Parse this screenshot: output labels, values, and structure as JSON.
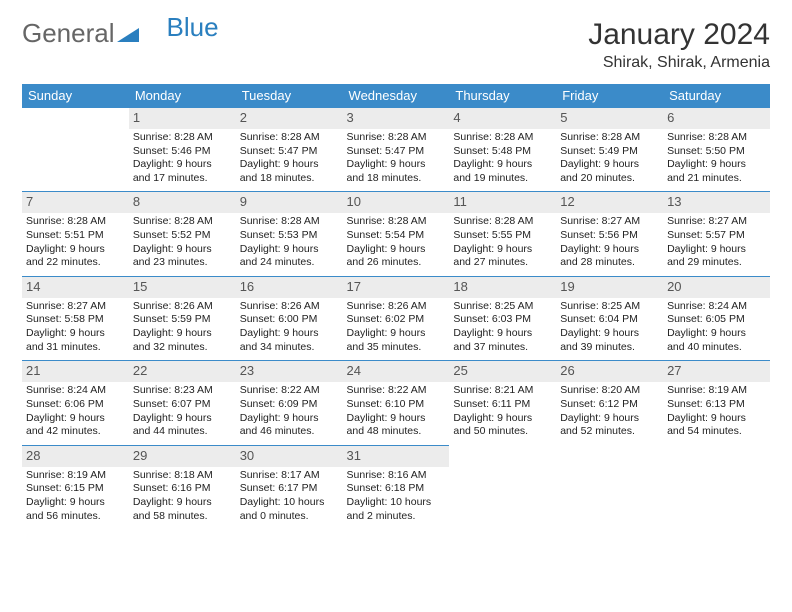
{
  "brand": {
    "part1": "General",
    "part2": "Blue"
  },
  "title": "January 2024",
  "location": "Shirak, Shirak, Armenia",
  "colors": {
    "header_bg": "#3b8bc9",
    "daynum_bg": "#ececec",
    "border": "#3b8bc9"
  },
  "weekdays": [
    "Sunday",
    "Monday",
    "Tuesday",
    "Wednesday",
    "Thursday",
    "Friday",
    "Saturday"
  ],
  "weeks": [
    [
      {
        "n": "",
        "sr": "",
        "ss": "",
        "dl": ""
      },
      {
        "n": "1",
        "sr": "Sunrise: 8:28 AM",
        "ss": "Sunset: 5:46 PM",
        "dl": "Daylight: 9 hours and 17 minutes."
      },
      {
        "n": "2",
        "sr": "Sunrise: 8:28 AM",
        "ss": "Sunset: 5:47 PM",
        "dl": "Daylight: 9 hours and 18 minutes."
      },
      {
        "n": "3",
        "sr": "Sunrise: 8:28 AM",
        "ss": "Sunset: 5:47 PM",
        "dl": "Daylight: 9 hours and 18 minutes."
      },
      {
        "n": "4",
        "sr": "Sunrise: 8:28 AM",
        "ss": "Sunset: 5:48 PM",
        "dl": "Daylight: 9 hours and 19 minutes."
      },
      {
        "n": "5",
        "sr": "Sunrise: 8:28 AM",
        "ss": "Sunset: 5:49 PM",
        "dl": "Daylight: 9 hours and 20 minutes."
      },
      {
        "n": "6",
        "sr": "Sunrise: 8:28 AM",
        "ss": "Sunset: 5:50 PM",
        "dl": "Daylight: 9 hours and 21 minutes."
      }
    ],
    [
      {
        "n": "7",
        "sr": "Sunrise: 8:28 AM",
        "ss": "Sunset: 5:51 PM",
        "dl": "Daylight: 9 hours and 22 minutes."
      },
      {
        "n": "8",
        "sr": "Sunrise: 8:28 AM",
        "ss": "Sunset: 5:52 PM",
        "dl": "Daylight: 9 hours and 23 minutes."
      },
      {
        "n": "9",
        "sr": "Sunrise: 8:28 AM",
        "ss": "Sunset: 5:53 PM",
        "dl": "Daylight: 9 hours and 24 minutes."
      },
      {
        "n": "10",
        "sr": "Sunrise: 8:28 AM",
        "ss": "Sunset: 5:54 PM",
        "dl": "Daylight: 9 hours and 26 minutes."
      },
      {
        "n": "11",
        "sr": "Sunrise: 8:28 AM",
        "ss": "Sunset: 5:55 PM",
        "dl": "Daylight: 9 hours and 27 minutes."
      },
      {
        "n": "12",
        "sr": "Sunrise: 8:27 AM",
        "ss": "Sunset: 5:56 PM",
        "dl": "Daylight: 9 hours and 28 minutes."
      },
      {
        "n": "13",
        "sr": "Sunrise: 8:27 AM",
        "ss": "Sunset: 5:57 PM",
        "dl": "Daylight: 9 hours and 29 minutes."
      }
    ],
    [
      {
        "n": "14",
        "sr": "Sunrise: 8:27 AM",
        "ss": "Sunset: 5:58 PM",
        "dl": "Daylight: 9 hours and 31 minutes."
      },
      {
        "n": "15",
        "sr": "Sunrise: 8:26 AM",
        "ss": "Sunset: 5:59 PM",
        "dl": "Daylight: 9 hours and 32 minutes."
      },
      {
        "n": "16",
        "sr": "Sunrise: 8:26 AM",
        "ss": "Sunset: 6:00 PM",
        "dl": "Daylight: 9 hours and 34 minutes."
      },
      {
        "n": "17",
        "sr": "Sunrise: 8:26 AM",
        "ss": "Sunset: 6:02 PM",
        "dl": "Daylight: 9 hours and 35 minutes."
      },
      {
        "n": "18",
        "sr": "Sunrise: 8:25 AM",
        "ss": "Sunset: 6:03 PM",
        "dl": "Daylight: 9 hours and 37 minutes."
      },
      {
        "n": "19",
        "sr": "Sunrise: 8:25 AM",
        "ss": "Sunset: 6:04 PM",
        "dl": "Daylight: 9 hours and 39 minutes."
      },
      {
        "n": "20",
        "sr": "Sunrise: 8:24 AM",
        "ss": "Sunset: 6:05 PM",
        "dl": "Daylight: 9 hours and 40 minutes."
      }
    ],
    [
      {
        "n": "21",
        "sr": "Sunrise: 8:24 AM",
        "ss": "Sunset: 6:06 PM",
        "dl": "Daylight: 9 hours and 42 minutes."
      },
      {
        "n": "22",
        "sr": "Sunrise: 8:23 AM",
        "ss": "Sunset: 6:07 PM",
        "dl": "Daylight: 9 hours and 44 minutes."
      },
      {
        "n": "23",
        "sr": "Sunrise: 8:22 AM",
        "ss": "Sunset: 6:09 PM",
        "dl": "Daylight: 9 hours and 46 minutes."
      },
      {
        "n": "24",
        "sr": "Sunrise: 8:22 AM",
        "ss": "Sunset: 6:10 PM",
        "dl": "Daylight: 9 hours and 48 minutes."
      },
      {
        "n": "25",
        "sr": "Sunrise: 8:21 AM",
        "ss": "Sunset: 6:11 PM",
        "dl": "Daylight: 9 hours and 50 minutes."
      },
      {
        "n": "26",
        "sr": "Sunrise: 8:20 AM",
        "ss": "Sunset: 6:12 PM",
        "dl": "Daylight: 9 hours and 52 minutes."
      },
      {
        "n": "27",
        "sr": "Sunrise: 8:19 AM",
        "ss": "Sunset: 6:13 PM",
        "dl": "Daylight: 9 hours and 54 minutes."
      }
    ],
    [
      {
        "n": "28",
        "sr": "Sunrise: 8:19 AM",
        "ss": "Sunset: 6:15 PM",
        "dl": "Daylight: 9 hours and 56 minutes."
      },
      {
        "n": "29",
        "sr": "Sunrise: 8:18 AM",
        "ss": "Sunset: 6:16 PM",
        "dl": "Daylight: 9 hours and 58 minutes."
      },
      {
        "n": "30",
        "sr": "Sunrise: 8:17 AM",
        "ss": "Sunset: 6:17 PM",
        "dl": "Daylight: 10 hours and 0 minutes."
      },
      {
        "n": "31",
        "sr": "Sunrise: 8:16 AM",
        "ss": "Sunset: 6:18 PM",
        "dl": "Daylight: 10 hours and 2 minutes."
      },
      {
        "n": "",
        "sr": "",
        "ss": "",
        "dl": ""
      },
      {
        "n": "",
        "sr": "",
        "ss": "",
        "dl": ""
      },
      {
        "n": "",
        "sr": "",
        "ss": "",
        "dl": ""
      }
    ]
  ]
}
